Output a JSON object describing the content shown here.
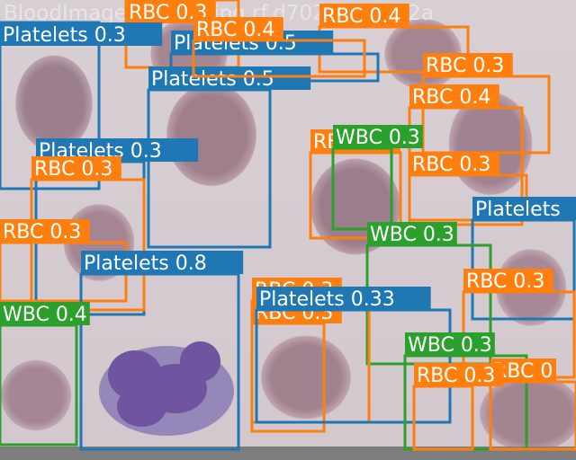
{
  "image": {
    "watermark_text": "BloodImage_00000_jpg.rf.d702f2b1fBC2a"
  },
  "colors": {
    "Platelets": "#1f77b4",
    "RBC": "#ff7f0e",
    "WBC": "#2ca02c"
  },
  "detections": [
    {
      "cls": "RBC",
      "label": "RBC 0.3"
    },
    {
      "cls": "RBC",
      "label": "RBC 0.4"
    },
    {
      "cls": "Platelets",
      "label": "Platelets 0.3"
    },
    {
      "cls": "Platelets",
      "label": "Platelets 0.5"
    },
    {
      "cls": "Platelets",
      "label": "Platelets 0.5"
    },
    {
      "cls": "RBC",
      "label": "RBC 0.3"
    },
    {
      "cls": "RBC",
      "label": "RBC 0.4"
    },
    {
      "cls": "RBC",
      "label": "RBC 0.4"
    },
    {
      "cls": "RBC",
      "label": "RBC 0.3"
    },
    {
      "cls": "WBC",
      "label": "WBC 0.3"
    },
    {
      "cls": "RBC",
      "label": "RBC 0.3"
    },
    {
      "cls": "Platelets",
      "label": "Platelets 0.3"
    },
    {
      "cls": "RBC",
      "label": "RBC 0.3"
    },
    {
      "cls": "RBC",
      "label": "RBC 0.3"
    },
    {
      "cls": "Platelets",
      "label": "Platelets"
    },
    {
      "cls": "WBC",
      "label": "WBC 0.3"
    },
    {
      "cls": "RBC",
      "label": "RBC 0.3"
    },
    {
      "cls": "RBC",
      "label": "RBC 0.3"
    },
    {
      "cls": "Platelets",
      "label": "Platelets 0.8"
    },
    {
      "cls": "RBC",
      "label": "RBC 0.3"
    },
    {
      "cls": "Platelets",
      "label": "Platelets 0.33"
    },
    {
      "cls": "WBC",
      "label": "WBC 0.4"
    },
    {
      "cls": "WBC",
      "label": "WBC 0.3"
    },
    {
      "cls": "RBC",
      "label": "RBC 0"
    },
    {
      "cls": "RBC",
      "label": "RBC 0.3"
    }
  ]
}
